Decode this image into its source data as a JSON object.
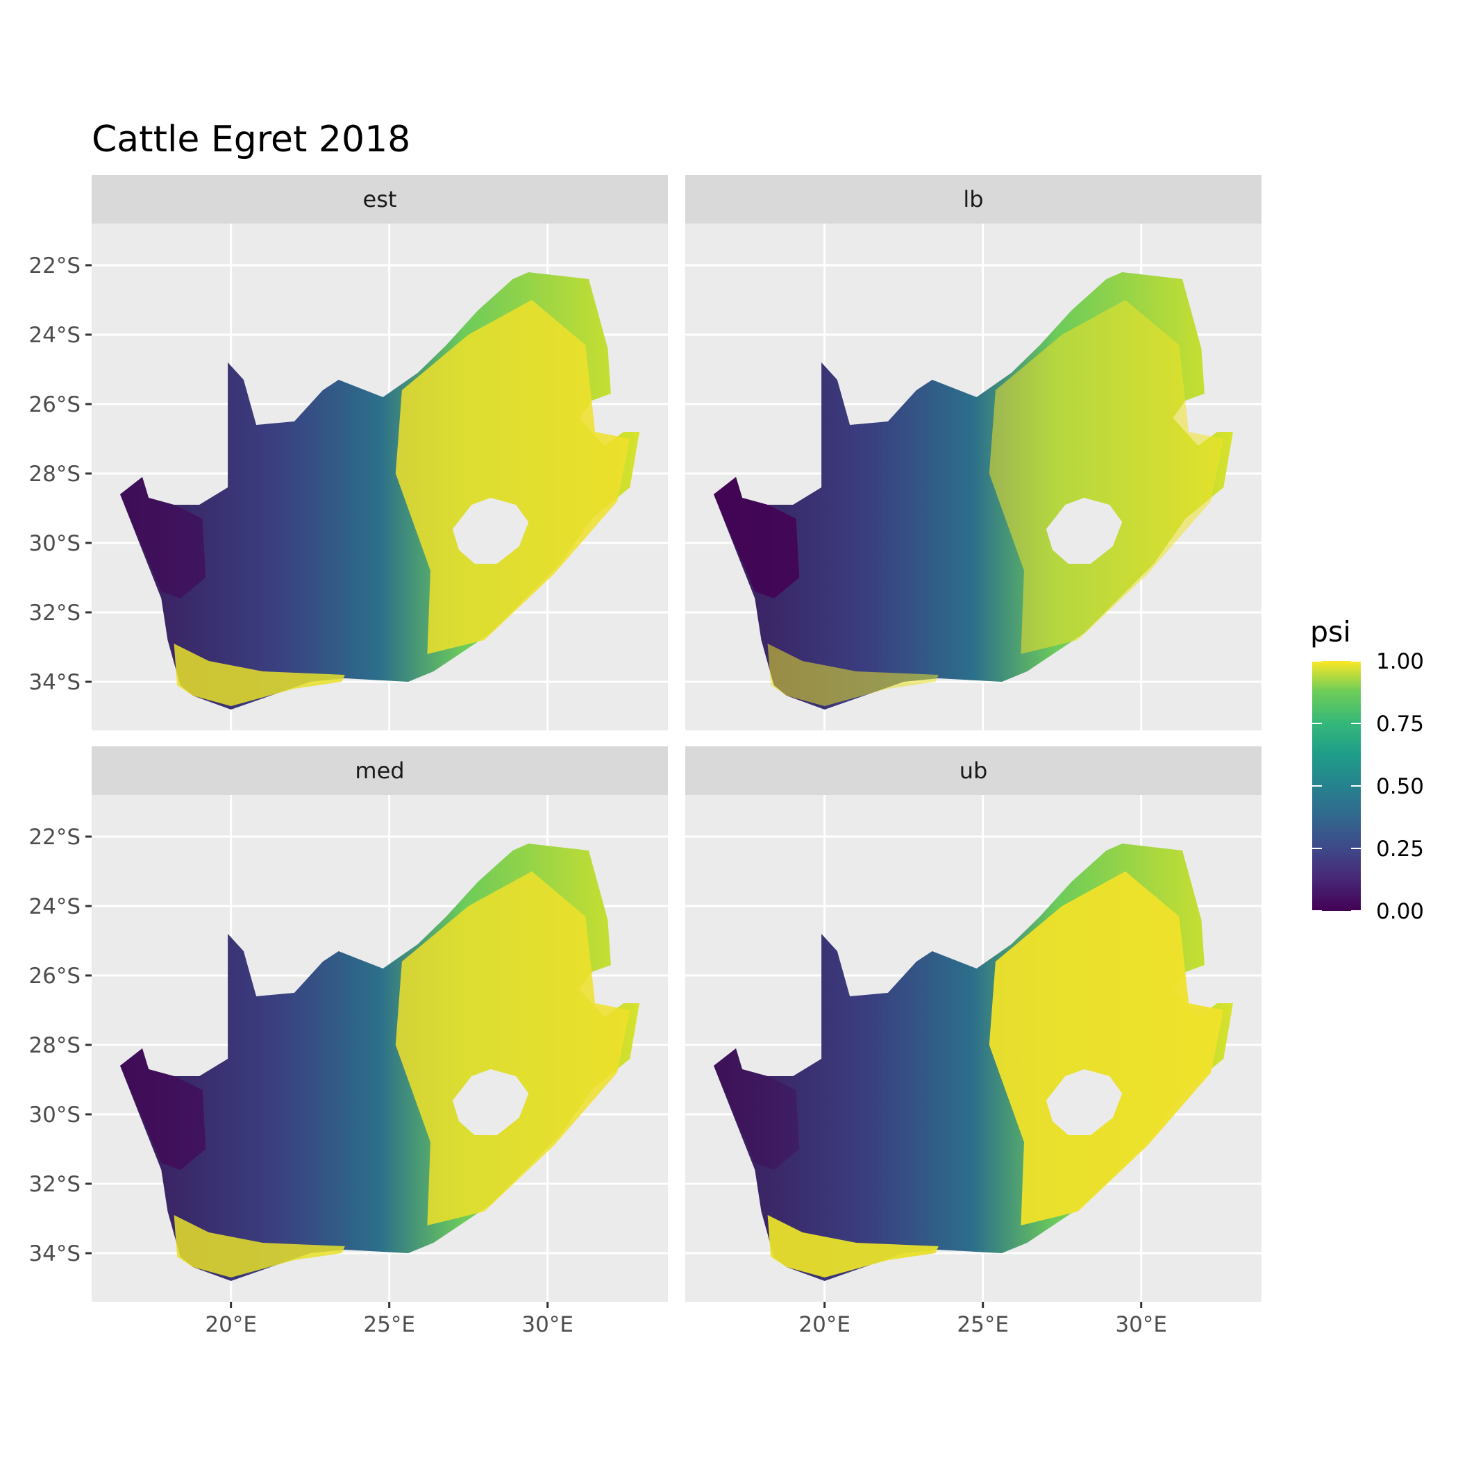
{
  "chart_data": {
    "type": "heatmap",
    "title": "Cattle Egret 2018",
    "xlabel": "",
    "ylabel": "",
    "panels": [
      "est",
      "lb",
      "med",
      "ub"
    ],
    "x_ticks": [
      {
        "value": 20,
        "label": "20°E"
      },
      {
        "value": 25,
        "label": "25°E"
      },
      {
        "value": 30,
        "label": "30°E"
      }
    ],
    "y_ticks": [
      {
        "value": -22,
        "label": "22°S"
      },
      {
        "value": -24,
        "label": "24°S"
      },
      {
        "value": -26,
        "label": "26°S"
      },
      {
        "value": -28,
        "label": "28°S"
      },
      {
        "value": -30,
        "label": "30°S"
      },
      {
        "value": -32,
        "label": "32°S"
      },
      {
        "value": -34,
        "label": "34°S"
      }
    ],
    "xlim": [
      15.6,
      33.8
    ],
    "ylim": [
      -35.4,
      -20.8
    ],
    "grid": true,
    "legend": {
      "title": "psi",
      "position": "right",
      "range": [
        0,
        1
      ],
      "breaks": [
        {
          "value": 0,
          "label": "0.00"
        },
        {
          "value": 0.25,
          "label": "0.25"
        },
        {
          "value": 0.5,
          "label": "0.50"
        },
        {
          "value": 0.75,
          "label": "0.75"
        },
        {
          "value": 1,
          "label": "1.00"
        }
      ],
      "palette": [
        "#440154",
        "#3b528b",
        "#21918c",
        "#5ec962",
        "#fde725"
      ]
    },
    "colors": {
      "panel_background": "#ebebeb",
      "strip_background": "#d9d9d9",
      "grid": "#ffffff",
      "viridis_low": "#440154",
      "viridis_high": "#fde725"
    }
  }
}
